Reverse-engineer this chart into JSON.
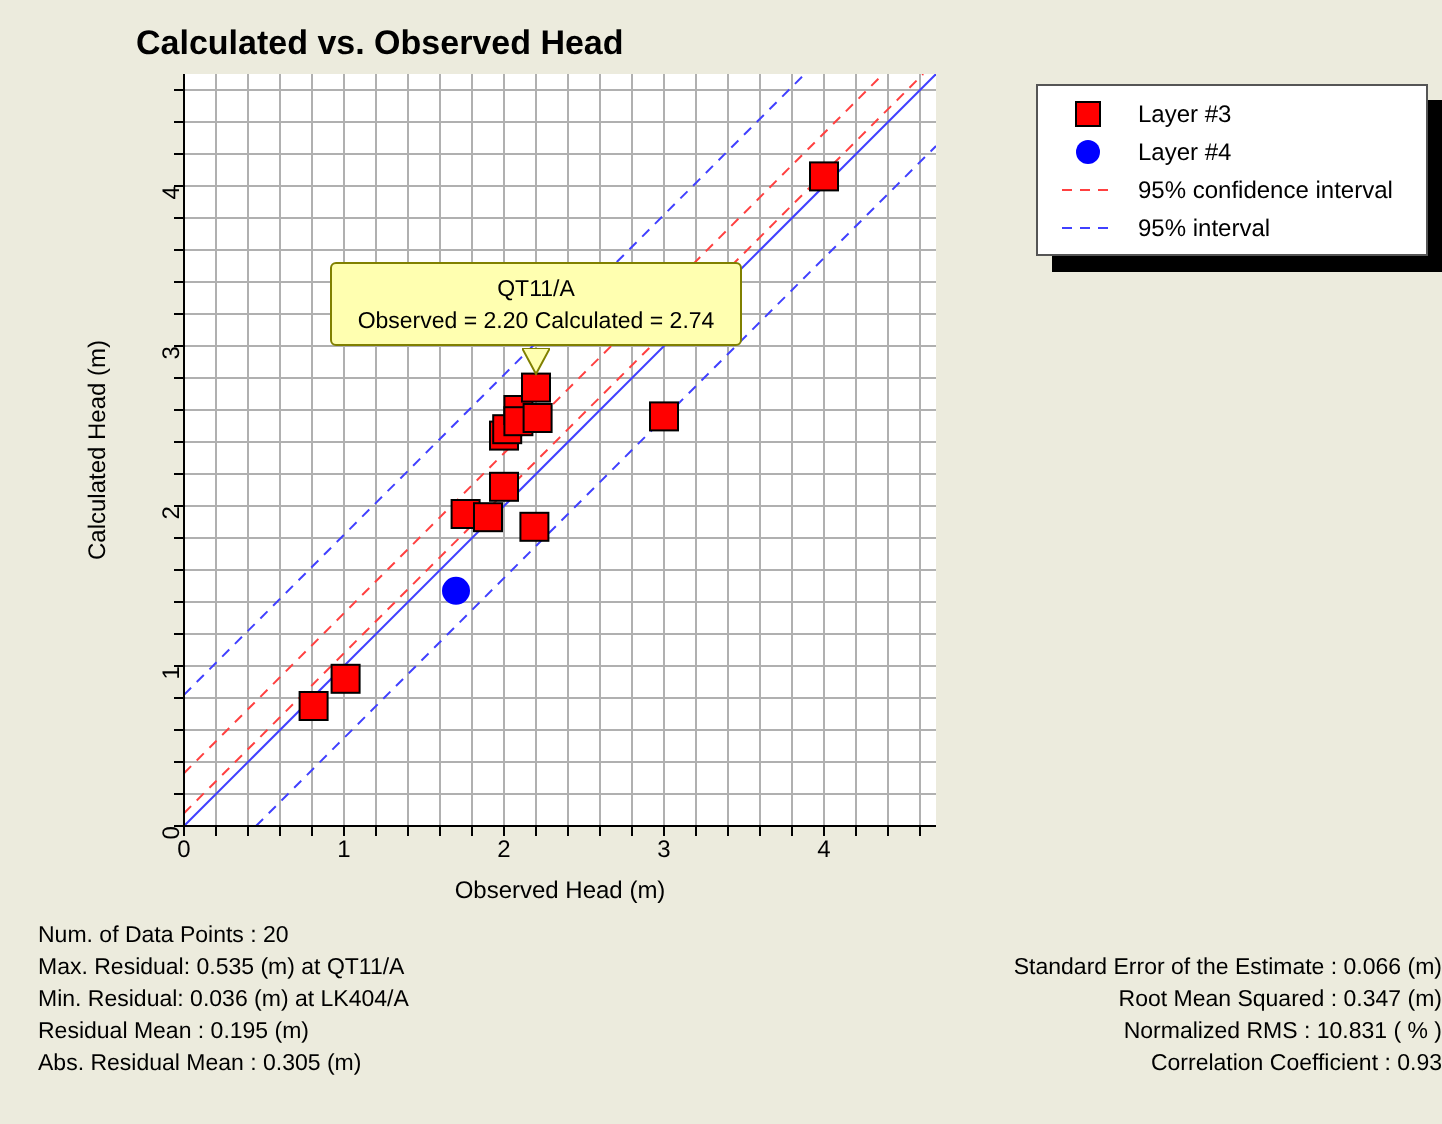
{
  "chart_data": {
    "type": "scatter",
    "title": "Calculated vs. Observed Head",
    "xlabel": "Observed Head (m)",
    "ylabel": "Calculated Head (m)",
    "xlim": [
      0,
      4.7
    ],
    "ylim": [
      0,
      4.7
    ],
    "xticks": [
      0,
      {
        "value": 0.2,
        "label": null
      },
      {
        "value": 0.4,
        "label": null
      },
      {
        "value": 0.6,
        "label": null
      },
      {
        "value": 0.8,
        "label": null
      },
      1,
      {
        "value": 1.2,
        "label": null
      },
      {
        "value": 1.4,
        "label": null
      },
      {
        "value": 1.6,
        "label": null
      },
      {
        "value": 1.8,
        "label": null
      },
      2,
      {
        "value": 2.2,
        "label": null
      },
      {
        "value": 2.4,
        "label": null
      },
      {
        "value": 2.6,
        "label": null
      },
      {
        "value": 2.8,
        "label": null
      },
      3,
      {
        "value": 3.2,
        "label": null
      },
      {
        "value": 3.4,
        "label": null
      },
      {
        "value": 3.6,
        "label": null
      },
      {
        "value": 3.8,
        "label": null
      },
      4,
      {
        "value": 4.2,
        "label": null
      },
      {
        "value": 4.4,
        "label": null
      },
      {
        "value": 4.6,
        "label": null
      }
    ],
    "yticks": [
      0,
      {
        "value": 0.2,
        "label": null
      },
      {
        "value": 0.4,
        "label": null
      },
      {
        "value": 0.6,
        "label": null
      },
      {
        "value": 0.8,
        "label": null
      },
      1,
      {
        "value": 1.2,
        "label": null
      },
      {
        "value": 1.4,
        "label": null
      },
      {
        "value": 1.6,
        "label": null
      },
      {
        "value": 1.8,
        "label": null
      },
      2,
      {
        "value": 2.2,
        "label": null
      },
      {
        "value": 2.4,
        "label": null
      },
      {
        "value": 2.6,
        "label": null
      },
      {
        "value": 2.8,
        "label": null
      },
      3,
      {
        "value": 3.2,
        "label": null
      },
      {
        "value": 3.4,
        "label": null
      },
      {
        "value": 3.6,
        "label": null
      },
      {
        "value": 3.8,
        "label": null
      },
      4,
      {
        "value": 4.2,
        "label": null
      },
      {
        "value": 4.4,
        "label": null
      },
      {
        "value": 4.6,
        "label": null
      }
    ],
    "grid": true,
    "legend": "top right",
    "series": [
      {
        "name": "Layer #3",
        "marker": "square",
        "color": "#ff0000",
        "x": [
          0.81,
          1.01,
          1.76,
          1.9,
          2.0,
          2.19,
          2.0,
          2.02,
          2.09,
          2.09,
          2.21,
          2.2,
          3.0,
          4.0
        ],
        "values": [
          0.75,
          0.92,
          1.95,
          1.93,
          2.12,
          1.87,
          2.44,
          2.48,
          2.6,
          2.53,
          2.55,
          2.74,
          2.56,
          4.06
        ]
      },
      {
        "name": "Layer #4",
        "marker": "circle",
        "color": "#0000ff",
        "x": [
          1.7
        ],
        "values": [
          1.47
        ]
      },
      {
        "name": "95% confidence interval",
        "type": "line",
        "line_style": "dashed",
        "color": "#ff4040",
        "x": [
          0,
          4.37
        ],
        "values": [
          0.33,
          4.7
        ]
      },
      {
        "type": "line",
        "line_style": "dashed",
        "color": "#ff4040",
        "x": [
          0,
          4.62
        ],
        "values": [
          0.08,
          4.7
        ]
      },
      {
        "name": "95% interval",
        "type": "line",
        "line_style": "dashed",
        "color": "#4040ff",
        "x": [
          0,
          3.88
        ],
        "values": [
          0.82,
          4.7
        ]
      },
      {
        "type": "line",
        "line_style": "dashed",
        "color": "#4040ff",
        "x": [
          0.45,
          4.7
        ],
        "values": [
          0,
          4.25
        ]
      },
      {
        "type": "line",
        "line_style": "solid",
        "color": "#4040ff",
        "x": [
          0,
          4.7
        ],
        "values": [
          0,
          4.7
        ]
      }
    ],
    "annotations": [
      {
        "text": "QT11/A\nObserved = 2.20 Calculated = 2.74",
        "x": 2.2,
        "y": 2.74
      },
      "Num. of Data Points : 20",
      "Max. Residual: 0.535 (m) at QT11/A",
      "Min. Residual: 0.036 (m) at LK404/A",
      "Residual Mean : 0.195 (m)",
      "Abs. Residual Mean : 0.305 (m)",
      "Standard Error of the Estimate : 0.066 (m)",
      "Root Mean Squared : 0.347 (m)",
      "Normalized RMS : 10.831 ( % )",
      "Correlation Coefficient : 0.93"
    ]
  }
}
